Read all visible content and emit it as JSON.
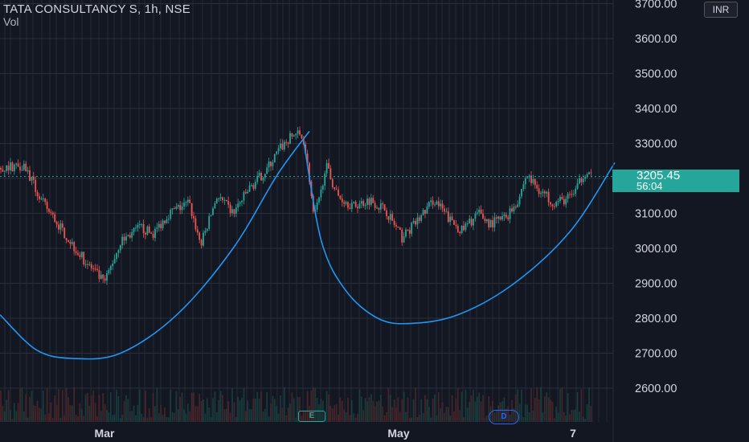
{
  "header": {
    "title": "TATA CONSULTANCY S, 1h, NSE",
    "indicator": "Vol",
    "currency": "INR"
  },
  "price_label": {
    "price": "3205.45",
    "countdown": "56:04"
  },
  "events": {
    "earnings": "E",
    "dividend": "D"
  },
  "colors": {
    "background": "#131722",
    "up": "#26a69a",
    "down": "#ef5350",
    "curve": "#2196f3",
    "grid": "#2a2e39",
    "axis_text": "#d1d4dc"
  },
  "chart_data": {
    "type": "candlestick",
    "title": "TATA CONSULTANCY S, 1h, NSE",
    "ylim": [
      2500,
      3700
    ],
    "y_ticks": [
      "2600.00",
      "2700.00",
      "2800.00",
      "2900.00",
      "3000.00",
      "3100.00",
      "3200.00",
      "3300.00",
      "3400.00",
      "3500.00",
      "3600.00",
      "3700.00"
    ],
    "x_ticks": [
      "Mar",
      "May",
      "7"
    ],
    "last_price": 3205.45,
    "series": [
      {
        "name": "price",
        "anchors": [
          {
            "x": 0,
            "y": 3230
          },
          {
            "x": 30,
            "y": 3240
          },
          {
            "x": 50,
            "y": 3140
          },
          {
            "x": 75,
            "y": 3060
          },
          {
            "x": 100,
            "y": 2980
          },
          {
            "x": 130,
            "y": 2900
          },
          {
            "x": 150,
            "y": 3020
          },
          {
            "x": 175,
            "y": 3060
          },
          {
            "x": 190,
            "y": 3040
          },
          {
            "x": 210,
            "y": 3100
          },
          {
            "x": 235,
            "y": 3130
          },
          {
            "x": 250,
            "y": 3010
          },
          {
            "x": 270,
            "y": 3150
          },
          {
            "x": 290,
            "y": 3100
          },
          {
            "x": 310,
            "y": 3170
          },
          {
            "x": 330,
            "y": 3220
          },
          {
            "x": 350,
            "y": 3290
          },
          {
            "x": 368,
            "y": 3330
          },
          {
            "x": 378,
            "y": 3310
          },
          {
            "x": 385,
            "y": 3200
          },
          {
            "x": 390,
            "y": 3090
          },
          {
            "x": 398,
            "y": 3140
          },
          {
            "x": 405,
            "y": 3240
          },
          {
            "x": 420,
            "y": 3150
          },
          {
            "x": 440,
            "y": 3120
          },
          {
            "x": 460,
            "y": 3140
          },
          {
            "x": 480,
            "y": 3110
          },
          {
            "x": 500,
            "y": 3030
          },
          {
            "x": 520,
            "y": 3080
          },
          {
            "x": 540,
            "y": 3140
          },
          {
            "x": 560,
            "y": 3080
          },
          {
            "x": 575,
            "y": 3050
          },
          {
            "x": 595,
            "y": 3100
          },
          {
            "x": 610,
            "y": 3070
          },
          {
            "x": 630,
            "y": 3090
          },
          {
            "x": 645,
            "y": 3140
          },
          {
            "x": 655,
            "y": 3210
          },
          {
            "x": 670,
            "y": 3170
          },
          {
            "x": 690,
            "y": 3130
          },
          {
            "x": 705,
            "y": 3140
          },
          {
            "x": 718,
            "y": 3170
          },
          {
            "x": 727,
            "y": 3220
          },
          {
            "x": 737,
            "y": 3205
          }
        ]
      },
      {
        "name": "arc1",
        "points": [
          {
            "x": 0,
            "y": 2810
          },
          {
            "x": 45,
            "y": 2710
          },
          {
            "x": 90,
            "y": 2685
          },
          {
            "x": 150,
            "y": 2700
          },
          {
            "x": 220,
            "y": 2810
          },
          {
            "x": 290,
            "y": 3000
          },
          {
            "x": 345,
            "y": 3210
          },
          {
            "x": 385,
            "y": 3335
          }
        ]
      },
      {
        "name": "arc2",
        "points": [
          {
            "x": 378,
            "y": 3305
          },
          {
            "x": 400,
            "y": 3020
          },
          {
            "x": 430,
            "y": 2880
          },
          {
            "x": 470,
            "y": 2800
          },
          {
            "x": 510,
            "y": 2785
          },
          {
            "x": 570,
            "y": 2810
          },
          {
            "x": 640,
            "y": 2900
          },
          {
            "x": 710,
            "y": 3050
          },
          {
            "x": 765,
            "y": 3245
          }
        ]
      }
    ]
  }
}
